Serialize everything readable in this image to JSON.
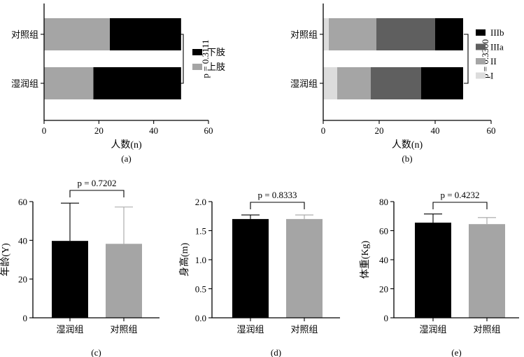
{
  "chart_data": [
    {
      "panel": "a",
      "caption": "(a)",
      "type": "bar",
      "orientation": "horizontal",
      "stacked": true,
      "categories": [
        "对照组",
        "湿润组"
      ],
      "xlabel": "人数(n)",
      "xlim": [
        0,
        60
      ],
      "xticks": [
        0,
        20,
        40,
        60
      ],
      "series": [
        {
          "name": "上肢",
          "color": "#a5a5a5",
          "values": [
            24,
            18
          ]
        },
        {
          "name": "下肢",
          "color": "#000000",
          "values": [
            26,
            32
          ]
        }
      ],
      "legend_order": [
        "下肢",
        "上肢"
      ],
      "annotation": "p = 0.3111"
    },
    {
      "panel": "b",
      "caption": "(b)",
      "type": "bar",
      "orientation": "horizontal",
      "stacked": true,
      "categories": [
        "对照组",
        "湿润组"
      ],
      "xlabel": "人数(n)",
      "xlim": [
        0,
        60
      ],
      "xticks": [
        0,
        20,
        40,
        60
      ],
      "series": [
        {
          "name": "I",
          "color": "#dcdcdc",
          "values": [
            2,
            5
          ]
        },
        {
          "name": "II",
          "color": "#a5a5a5",
          "values": [
            17,
            12
          ]
        },
        {
          "name": "IIIa",
          "color": "#5f5f5f",
          "values": [
            21,
            18
          ]
        },
        {
          "name": "IIIb",
          "color": "#000000",
          "values": [
            10,
            15
          ]
        }
      ],
      "legend_order": [
        "IIIb",
        "IIIa",
        "II",
        "I"
      ],
      "annotation": "p = 0.3300"
    },
    {
      "panel": "c",
      "caption": "(c)",
      "type": "bar",
      "categories": [
        "湿润组",
        "对照组"
      ],
      "ylabel": "年龄(Y)",
      "ylim": [
        0,
        60
      ],
      "yticks": [
        0,
        20,
        40,
        60
      ],
      "values": [
        39.7,
        38.2
      ],
      "errors": [
        19.5,
        19.0
      ],
      "colors": [
        "#000000",
        "#a5a5a5"
      ],
      "annotation": "p = 0.7202"
    },
    {
      "panel": "d",
      "caption": "(d)",
      "type": "bar",
      "categories": [
        "湿润组",
        "对照组"
      ],
      "ylabel": "身高(m)",
      "ylim": [
        0,
        2.0
      ],
      "yticks": [
        "0.0",
        "0.5",
        "1.0",
        "1.5",
        "2.0"
      ],
      "values": [
        1.7,
        1.7
      ],
      "errors": [
        0.07,
        0.07
      ],
      "colors": [
        "#000000",
        "#a5a5a5"
      ],
      "annotation": "p = 0.8333"
    },
    {
      "panel": "e",
      "caption": "(e)",
      "type": "bar",
      "categories": [
        "湿润组",
        "对照组"
      ],
      "ylabel": "体重(Kg)",
      "ylim": [
        0,
        80
      ],
      "yticks": [
        0,
        20,
        40,
        60,
        80
      ],
      "values": [
        65.5,
        64.5
      ],
      "errors": [
        6.0,
        4.5
      ],
      "colors": [
        "#000000",
        "#a5a5a5"
      ],
      "annotation": "p = 0.4232"
    }
  ]
}
